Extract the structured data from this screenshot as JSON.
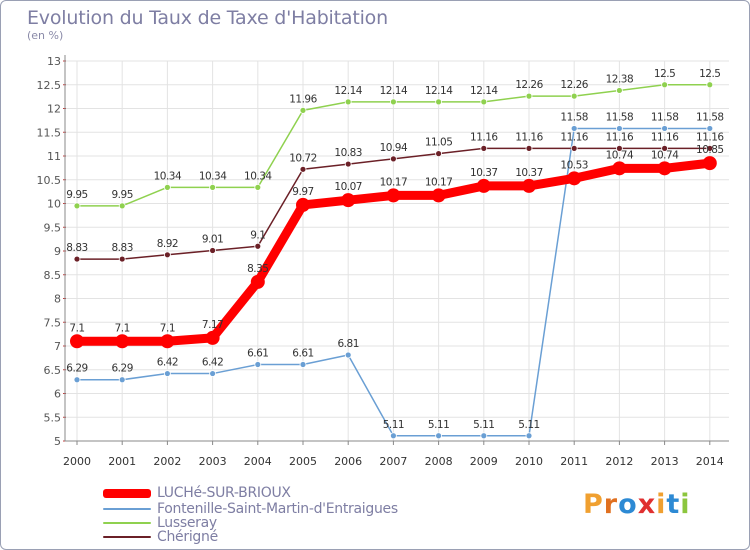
{
  "title": "Evolution du Taux de Taxe d'Habitation",
  "unit_label": "(en %)",
  "logo": {
    "text": "Proxiti",
    "letter_colors": [
      "#f0a030",
      "#e07020",
      "#2d8ad4",
      "#e03030",
      "#f0a030",
      "#2d8ad4",
      "#8cc63e"
    ]
  },
  "chart_data": {
    "type": "line",
    "title": "Evolution du Taux de Taxe d'Habitation",
    "ylabel": "(en %)",
    "xlabel": "",
    "x": [
      "2000",
      "2001",
      "2002",
      "2003",
      "2004",
      "2005",
      "2006",
      "2007",
      "2008",
      "2009",
      "2010",
      "2011",
      "2012",
      "2013",
      "2014"
    ],
    "ylim": [
      5,
      13
    ],
    "yticks": [
      "5",
      "5.5",
      "6",
      "6.5",
      "7",
      "7.5",
      "8",
      "8.5",
      "9",
      "9.5",
      "10",
      "10.5",
      "11",
      "11.5",
      "12",
      "12.5",
      "13"
    ],
    "grid": true,
    "series": [
      {
        "name": "LUCHé-SUR-BRIOUX",
        "color": "#ff0000",
        "values": [
          7.1,
          7.1,
          7.1,
          7.17,
          8.35,
          9.97,
          10.07,
          10.17,
          10.17,
          10.37,
          10.37,
          10.53,
          10.74,
          10.74,
          10.85
        ],
        "labels": [
          "7.1",
          "7.1",
          "7.1",
          "7.17",
          "8.35",
          "9.97",
          "10.07",
          "10.17",
          "10.17",
          "10.37",
          "10.37",
          "10.53",
          "10.74",
          "10.74",
          "10.85"
        ]
      },
      {
        "name": "Fontenille-Saint-Martin-d'Entraigues",
        "color": "#6a9fd4",
        "values": [
          6.29,
          6.29,
          6.42,
          6.42,
          6.61,
          6.61,
          6.81,
          5.11,
          5.11,
          5.11,
          5.11,
          11.58,
          11.58,
          11.58,
          11.58
        ],
        "labels": [
          "6.29",
          "6.29",
          "6.42",
          "6.42",
          "6.61",
          "6.61",
          "6.81",
          "5.11",
          "5.11",
          "5.11",
          "5.11",
          "11.58",
          "11.58",
          "11.58",
          "11.58"
        ]
      },
      {
        "name": "Lusseray",
        "color": "#8fd14f",
        "values": [
          9.95,
          9.95,
          10.34,
          10.34,
          10.34,
          11.96,
          12.14,
          12.14,
          12.14,
          12.14,
          12.26,
          12.26,
          12.38,
          12.5,
          12.5
        ],
        "labels": [
          "9.95",
          "9.95",
          "10.34",
          "10.34",
          "10.34",
          "11.96",
          "12.14",
          "12.14",
          "12.14",
          "12.14",
          "12.26",
          "12.26",
          "12.38",
          "12.5",
          "12.5"
        ]
      },
      {
        "name": "Chérigné",
        "color": "#6b2027",
        "values": [
          8.83,
          8.83,
          8.92,
          9.01,
          9.1,
          10.72,
          10.83,
          10.94,
          11.05,
          11.16,
          11.16,
          11.16,
          11.16,
          11.16,
          11.16
        ],
        "labels": [
          "8.83",
          "8.83",
          "8.92",
          "9.01",
          "9.1",
          "10.72",
          "10.83",
          "10.94",
          "11.05",
          "11.16",
          "11.16",
          "11.16",
          "11.16",
          "11.16",
          "11.16"
        ]
      }
    ]
  }
}
